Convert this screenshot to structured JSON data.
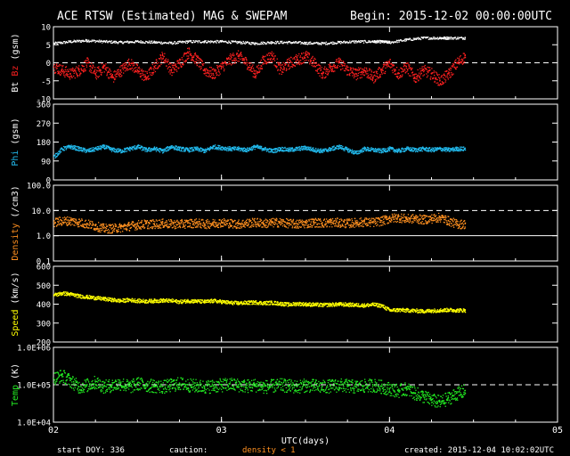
{
  "header": {
    "title": "ACE RTSW (Estimated) MAG & SWEPAM",
    "begin": "Begin: 2015-12-02 00:00:00UTC"
  },
  "footer": {
    "start_doy": "start DOY: 336",
    "caution": "caution:",
    "caution_note": "density < 1",
    "created": "created: 2015-12-04 10:02:02UTC"
  },
  "colors": {
    "background": "#000000",
    "axes": "#ffffff",
    "bt": "#ffffff",
    "bz": "#ff2020",
    "phi": "#22bbee",
    "density": "#ff9020",
    "speed": "#ffff00",
    "temp": "#22ee22",
    "caution": "#ff9020"
  },
  "chart_data": [
    {
      "type": "scatter",
      "panel": "mag",
      "ylabel": "Bt Bz (gsm)",
      "ylabel_parts": [
        {
          "text": "Bt",
          "color": "#ffffff"
        },
        {
          "text": " ",
          "color": "#ffffff"
        },
        {
          "text": "Bz",
          "color": "#ff2020"
        },
        {
          "text": " (gsm)",
          "color": "#ffffff"
        }
      ],
      "ylim": [
        -10,
        10
      ],
      "yticks": [
        "10",
        "5",
        "0",
        "-5",
        "-10"
      ],
      "ytick_values": [
        10,
        5,
        0,
        -5,
        -10
      ],
      "dashed_lines": [
        0
      ],
      "series": [
        {
          "name": "Bt",
          "color": "#ffffff",
          "x": [
            2.0,
            2.1,
            2.2,
            2.3,
            2.4,
            2.5,
            2.6,
            2.7,
            2.8,
            2.9,
            3.0,
            3.1,
            3.2,
            3.3,
            3.4,
            3.5,
            3.6,
            3.7,
            3.8,
            3.9,
            3.95,
            4.0,
            4.1,
            4.2,
            4.3,
            4.35,
            4.45
          ],
          "y": [
            5.5,
            6.0,
            6.3,
            6.0,
            5.8,
            6.0,
            5.8,
            5.6,
            6.0,
            6.0,
            6.0,
            5.8,
            5.5,
            5.8,
            5.8,
            5.6,
            5.5,
            5.8,
            6.0,
            6.0,
            6.0,
            5.8,
            6.5,
            7.0,
            7.0,
            7.0,
            7.0
          ]
        },
        {
          "name": "Bz",
          "color": "#ff2020",
          "x": [
            2.0,
            2.05,
            2.1,
            2.15,
            2.2,
            2.25,
            2.3,
            2.35,
            2.4,
            2.45,
            2.5,
            2.55,
            2.6,
            2.65,
            2.7,
            2.75,
            2.8,
            2.85,
            2.9,
            2.95,
            3.0,
            3.05,
            3.1,
            3.15,
            3.2,
            3.25,
            3.3,
            3.35,
            3.4,
            3.45,
            3.5,
            3.55,
            3.6,
            3.65,
            3.7,
            3.75,
            3.8,
            3.85,
            3.9,
            3.95,
            4.0,
            4.05,
            4.1,
            4.15,
            4.2,
            4.25,
            4.3,
            4.35,
            4.4,
            4.45
          ],
          "y": [
            -1,
            -2,
            -3,
            -2,
            0,
            -3,
            -1,
            -4,
            -2,
            0,
            -2,
            -4,
            -1,
            2,
            -2,
            0,
            3,
            1,
            -2,
            -3,
            -1,
            1,
            2,
            0,
            -3,
            1,
            2,
            -2,
            0,
            1,
            2,
            0,
            -3,
            -1,
            0,
            -2,
            -3,
            -2,
            -4,
            -2,
            0,
            -3,
            -1,
            -4,
            -2,
            -3,
            -5,
            -3,
            0,
            2
          ]
        }
      ]
    },
    {
      "type": "scatter",
      "panel": "phi",
      "ylabel": "Phi (gsm)",
      "ylabel_parts": [
        {
          "text": "Phi",
          "color": "#22bbee"
        },
        {
          "text": " (gsm)",
          "color": "#ffffff"
        }
      ],
      "ylim": [
        0,
        360
      ],
      "yticks": [
        "360",
        "270",
        "180",
        "90",
        "0"
      ],
      "ytick_values": [
        360,
        270,
        180,
        90,
        0
      ],
      "series": [
        {
          "name": "Phi",
          "color": "#22bbee",
          "x": [
            2.0,
            2.05,
            2.1,
            2.15,
            2.2,
            2.25,
            2.3,
            2.35,
            2.4,
            2.45,
            2.5,
            2.55,
            2.6,
            2.65,
            2.7,
            2.75,
            2.8,
            2.85,
            2.9,
            2.95,
            3.0,
            3.05,
            3.1,
            3.15,
            3.2,
            3.25,
            3.3,
            3.35,
            3.4,
            3.45,
            3.5,
            3.55,
            3.6,
            3.65,
            3.7,
            3.75,
            3.8,
            3.85,
            3.9,
            3.95,
            4.0,
            4.05,
            4.1,
            4.15,
            4.2,
            4.25,
            4.3,
            4.35,
            4.4,
            4.45
          ],
          "y": [
            110,
            150,
            160,
            150,
            140,
            150,
            160,
            145,
            140,
            150,
            160,
            145,
            150,
            140,
            160,
            150,
            145,
            150,
            140,
            160,
            155,
            150,
            150,
            145,
            160,
            150,
            140,
            150,
            145,
            150,
            155,
            145,
            140,
            150,
            160,
            145,
            130,
            150,
            145,
            140,
            150,
            140,
            150,
            145,
            150,
            145,
            150,
            145,
            150,
            150
          ]
        }
      ]
    },
    {
      "type": "scatter",
      "panel": "density",
      "ylabel": "Density (/cm3)",
      "ylabel_parts": [
        {
          "text": "Density",
          "color": "#ff9020"
        },
        {
          "text": " (/cm3)",
          "color": "#ffffff"
        }
      ],
      "yscale": "log",
      "ylim": [
        0.1,
        100
      ],
      "yticks": [
        "100.0",
        "10.0",
        "1.0",
        "0.1"
      ],
      "ytick_values": [
        100,
        10,
        1,
        0.1
      ],
      "dashed_lines": [
        10
      ],
      "solid_lines": [
        1
      ],
      "series": [
        {
          "name": "Density",
          "color": "#ff9020",
          "x": [
            2.0,
            2.05,
            2.1,
            2.15,
            2.2,
            2.25,
            2.3,
            2.35,
            2.4,
            2.45,
            2.5,
            2.55,
            2.6,
            2.65,
            2.7,
            2.75,
            2.8,
            2.85,
            2.9,
            2.95,
            3.0,
            3.05,
            3.1,
            3.15,
            3.2,
            3.25,
            3.3,
            3.35,
            3.4,
            3.45,
            3.5,
            3.55,
            3.6,
            3.65,
            3.7,
            3.75,
            3.8,
            3.85,
            3.9,
            3.95,
            4.0,
            4.05,
            4.1,
            4.15,
            4.2,
            4.25,
            4.3,
            4.35,
            4.4,
            4.45
          ],
          "y": [
            3.5,
            4.0,
            4.0,
            3.5,
            3.0,
            2.5,
            2.0,
            2.0,
            2.2,
            2.5,
            2.8,
            3.0,
            3.0,
            3.2,
            3.0,
            3.0,
            3.2,
            3.3,
            3.0,
            3.2,
            3.5,
            3.2,
            3.0,
            3.3,
            3.5,
            3.2,
            3.4,
            3.5,
            3.2,
            3.0,
            3.2,
            3.5,
            3.3,
            3.5,
            3.4,
            3.2,
            3.5,
            3.6,
            3.5,
            4.0,
            5.0,
            5.5,
            4.8,
            5.0,
            4.5,
            5.0,
            5.5,
            4.0,
            3.0,
            3.0
          ]
        }
      ]
    },
    {
      "type": "scatter",
      "panel": "speed",
      "ylabel": "Speed (km/s)",
      "ylabel_parts": [
        {
          "text": "Speed",
          "color": "#ffff00"
        },
        {
          "text": " (km/s)",
          "color": "#ffffff"
        }
      ],
      "ylim": [
        200,
        600
      ],
      "yticks": [
        "600",
        "500",
        "400",
        "300",
        "200"
      ],
      "ytick_values": [
        600,
        500,
        400,
        300,
        200
      ],
      "series": [
        {
          "name": "Speed",
          "color": "#ffff00",
          "x": [
            2.0,
            2.05,
            2.1,
            2.15,
            2.2,
            2.25,
            2.3,
            2.35,
            2.4,
            2.45,
            2.5,
            2.55,
            2.6,
            2.65,
            2.7,
            2.75,
            2.8,
            2.85,
            2.9,
            2.95,
            3.0,
            3.05,
            3.1,
            3.15,
            3.2,
            3.25,
            3.3,
            3.35,
            3.4,
            3.45,
            3.5,
            3.55,
            3.6,
            3.65,
            3.7,
            3.75,
            3.8,
            3.85,
            3.9,
            3.95,
            4.0,
            4.05,
            4.1,
            4.15,
            4.2,
            4.25,
            4.3,
            4.35,
            4.4,
            4.45
          ],
          "y": [
            450,
            460,
            455,
            445,
            440,
            435,
            430,
            425,
            420,
            425,
            420,
            418,
            420,
            422,
            420,
            415,
            420,
            418,
            415,
            420,
            415,
            410,
            408,
            410,
            412,
            408,
            410,
            405,
            400,
            405,
            402,
            400,
            398,
            400,
            402,
            400,
            398,
            396,
            400,
            395,
            370,
            372,
            370,
            368,
            365,
            368,
            370,
            372,
            370,
            370
          ]
        }
      ]
    },
    {
      "type": "scatter",
      "panel": "temp",
      "ylabel": "Temp (K)",
      "ylabel_parts": [
        {
          "text": "Temp",
          "color": "#22ee22"
        },
        {
          "text": " (K)",
          "color": "#ffffff"
        }
      ],
      "yscale": "log",
      "ylim": [
        10000,
        1000000
      ],
      "yticks": [
        "1.0E+06",
        "1.0E+05",
        "1.0E+04"
      ],
      "ytick_values": [
        1000000,
        100000,
        10000
      ],
      "dashed_lines": [
        100000
      ],
      "series": [
        {
          "name": "Temp",
          "color": "#22ee22",
          "x": [
            2.0,
            2.05,
            2.1,
            2.15,
            2.2,
            2.25,
            2.3,
            2.35,
            2.4,
            2.45,
            2.5,
            2.55,
            2.6,
            2.65,
            2.7,
            2.75,
            2.8,
            2.85,
            2.9,
            2.95,
            3.0,
            3.05,
            3.1,
            3.15,
            3.2,
            3.25,
            3.3,
            3.35,
            3.4,
            3.45,
            3.5,
            3.55,
            3.6,
            3.65,
            3.7,
            3.75,
            3.8,
            3.85,
            3.9,
            3.95,
            4.0,
            4.05,
            4.1,
            4.15,
            4.2,
            4.25,
            4.3,
            4.35,
            4.4,
            4.45
          ],
          "y": [
            150000,
            180000,
            130000,
            90000,
            100000,
            120000,
            90000,
            100000,
            110000,
            90000,
            110000,
            100000,
            95000,
            90000,
            100000,
            110000,
            100000,
            95000,
            90000,
            95000,
            100000,
            105000,
            100000,
            95000,
            100000,
            90000,
            95000,
            100000,
            95000,
            90000,
            100000,
            95000,
            90000,
            95000,
            100000,
            95000,
            90000,
            95000,
            100000,
            90000,
            80000,
            70000,
            80000,
            60000,
            50000,
            40000,
            35000,
            45000,
            60000,
            70000
          ]
        }
      ]
    }
  ],
  "x_axis": {
    "label": "UTC(days)",
    "xlim": [
      2,
      5
    ],
    "ticks": [
      "02",
      "03",
      "04",
      "05"
    ],
    "tick_values": [
      2,
      3,
      4,
      5
    ]
  }
}
